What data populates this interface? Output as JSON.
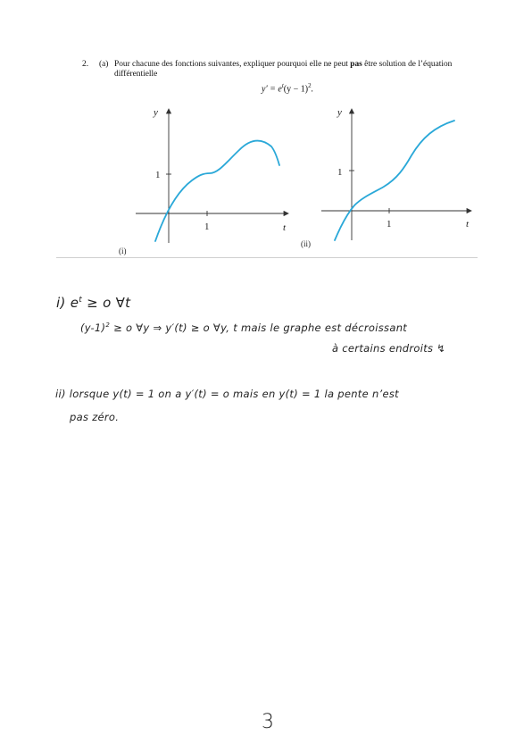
{
  "question": {
    "number": "2.",
    "part": "(a)",
    "text_before_bold": "Pour chacune des fonctions suivantes, expliquer pourquoi elle ne peut ",
    "text_bold": "pas",
    "text_after_bold": " être solution de l’équation",
    "text_line2": "différentielle",
    "equation": {
      "lhs": "y′ = e",
      "exp": "t",
      "mid": "(y − 1)",
      "pow": "2",
      "end": "."
    }
  },
  "graphs": [
    {
      "caption": "(i)",
      "ylabel": "y",
      "xlabel": "t",
      "tick_x": "1",
      "tick_y": "1"
    },
    {
      "caption": "(ii)",
      "ylabel": "y",
      "xlabel": "t",
      "tick_x": "1",
      "tick_y": "1"
    }
  ],
  "handwriting": {
    "l1": "i)  e",
    "l1_sup": "t",
    "l1_rest": " ≥ o   ∀t",
    "l2": "(y-1)",
    "l2_sup": "2",
    "l2_rest": " ≥ o  ∀y     ⇒ y′(t) ≥ o  ∀y, t   mais le graphe est décroissant",
    "l3": "à certains endroits  ↯",
    "l4": "ii)  lorsque  y(t) = 1   on a  y′(t) = o   mais en  y(t) = 1   la pente n’est",
    "l5": "pas zéro."
  },
  "page_number": "3",
  "colors": {
    "curve": "#2aa8d8"
  }
}
